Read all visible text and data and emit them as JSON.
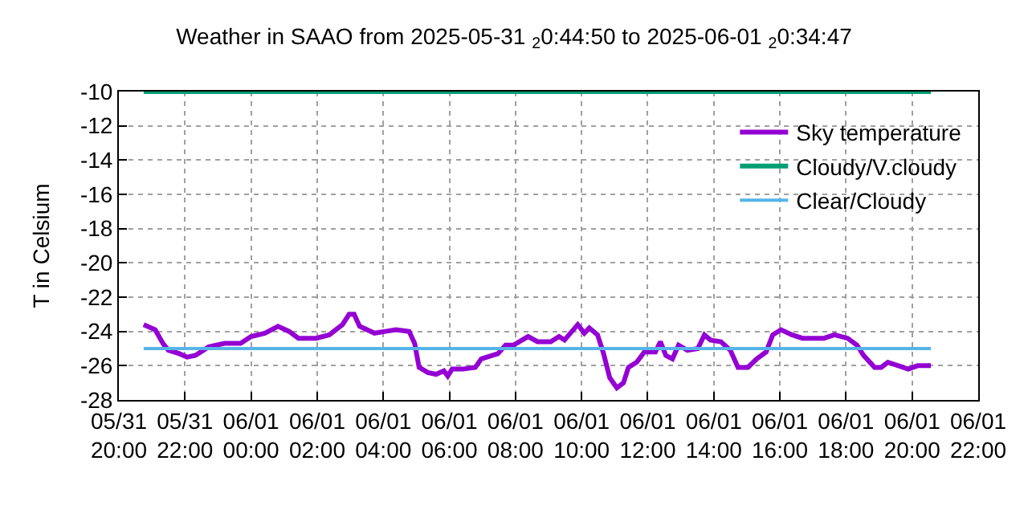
{
  "chart_data": {
    "type": "line",
    "title": "Weather in SAAO from 2025-05-31 $_{2}$0:44:50 to 2025-06-01 $_{2}$0:34:47",
    "ylabel": "T in Celsium",
    "xlim": [
      "2025-05-31T20:00",
      "2025-06-01T22:00"
    ],
    "xticks": [
      {
        "value": "2025-05-31T20:00",
        "label": "05/31\n20:00"
      },
      {
        "value": "2025-05-31T22:00",
        "label": "05/31\n22:00"
      },
      {
        "value": "2025-06-01T00:00",
        "label": "06/01\n00:00"
      },
      {
        "value": "2025-06-01T02:00",
        "label": "06/01\n02:00"
      },
      {
        "value": "2025-06-01T04:00",
        "label": "06/01\n04:00"
      },
      {
        "value": "2025-06-01T06:00",
        "label": "06/01\n06:00"
      },
      {
        "value": "2025-06-01T08:00",
        "label": "06/01\n08:00"
      },
      {
        "value": "2025-06-01T10:00",
        "label": "06/01\n10:00"
      },
      {
        "value": "2025-06-01T12:00",
        "label": "06/01\n12:00"
      },
      {
        "value": "2025-06-01T14:00",
        "label": "06/01\n14:00"
      },
      {
        "value": "2025-06-01T16:00",
        "label": "06/01\n16:00"
      },
      {
        "value": "2025-06-01T18:00",
        "label": "06/01\n18:00"
      },
      {
        "value": "2025-06-01T20:00",
        "label": "06/01\n20:00"
      },
      {
        "value": "2025-06-01T22:00",
        "label": "06/01\n22:00"
      }
    ],
    "ylim": [
      -28,
      -10
    ],
    "yticks": [
      -28,
      -26,
      -24,
      -22,
      -20,
      -18,
      -16,
      -14,
      -12,
      -10
    ],
    "grid": true,
    "legend": "top right",
    "series": [
      {
        "name": "Sky temperature",
        "color": "#9400d3",
        "x": [
          "2025-05-31T20:45",
          "2025-05-31T21:06",
          "2025-05-31T21:20",
          "2025-05-31T21:30",
          "2025-05-31T21:50",
          "2025-05-31T22:04",
          "2025-05-31T22:19",
          "2025-05-31T22:43",
          "2025-05-31T23:12",
          "2025-05-31T23:41",
          "2025-06-01T00:00",
          "2025-06-01T00:25",
          "2025-06-01T00:49",
          "2025-06-01T01:09",
          "2025-06-01T01:26",
          "2025-06-01T01:58",
          "2025-06-01T02:22",
          "2025-06-01T02:46",
          "2025-06-01T02:58",
          "2025-06-01T03:07",
          "2025-06-01T03:17",
          "2025-06-01T03:44",
          "2025-06-01T04:04",
          "2025-06-01T04:23",
          "2025-06-01T04:47",
          "2025-06-01T04:57",
          "2025-06-01T05:05",
          "2025-06-01T05:21",
          "2025-06-01T05:36",
          "2025-06-01T05:50",
          "2025-06-01T05:57",
          "2025-06-01T06:05",
          "2025-06-01T06:24",
          "2025-06-01T06:47",
          "2025-06-01T06:58",
          "2025-06-01T07:28",
          "2025-06-01T07:42",
          "2025-06-01T07:56",
          "2025-06-01T08:23",
          "2025-06-01T08:40",
          "2025-06-01T09:04",
          "2025-06-01T09:19",
          "2025-06-01T09:29",
          "2025-06-01T09:53",
          "2025-06-01T10:05",
          "2025-06-01T10:14",
          "2025-06-01T10:29",
          "2025-06-01T10:40",
          "2025-06-01T10:51",
          "2025-06-01T11:04",
          "2025-06-01T11:16",
          "2025-06-01T11:25",
          "2025-06-01T11:40",
          "2025-06-01T11:54",
          "2025-06-01T12:14",
          "2025-06-01T12:23",
          "2025-06-01T12:33",
          "2025-06-01T12:45",
          "2025-06-01T12:56",
          "2025-06-01T13:12",
          "2025-06-01T13:31",
          "2025-06-01T13:43",
          "2025-06-01T13:54",
          "2025-06-01T14:13",
          "2025-06-01T14:30",
          "2025-06-01T14:44",
          "2025-06-01T15:02",
          "2025-06-01T15:18",
          "2025-06-01T15:35",
          "2025-06-01T15:47",
          "2025-06-01T16:02",
          "2025-06-01T16:22",
          "2025-06-01T16:41",
          "2025-06-01T17:20",
          "2025-06-01T17:39",
          "2025-06-01T18:03",
          "2025-06-01T18:20",
          "2025-06-01T18:32",
          "2025-06-01T18:52",
          "2025-06-01T19:04",
          "2025-06-01T19:16",
          "2025-06-01T19:35",
          "2025-06-01T19:53",
          "2025-06-01T20:10",
          "2025-06-01T20:34"
        ],
        "values": [
          -23.6,
          -23.9,
          -24.7,
          -25.1,
          -25.3,
          -25.5,
          -25.4,
          -24.9,
          -24.7,
          -24.7,
          -24.3,
          -24.1,
          -23.7,
          -24.0,
          -24.4,
          -24.4,
          -24.2,
          -23.6,
          -23.0,
          -23.0,
          -23.7,
          -24.1,
          -24.0,
          -23.9,
          -24.0,
          -24.7,
          -26.1,
          -26.4,
          -26.5,
          -26.3,
          -26.6,
          -26.2,
          -26.2,
          -26.1,
          -25.6,
          -25.3,
          -24.8,
          -24.8,
          -24.3,
          -24.6,
          -24.6,
          -24.3,
          -24.5,
          -23.6,
          -24.1,
          -23.8,
          -24.2,
          -25.3,
          -26.7,
          -27.3,
          -27.0,
          -26.1,
          -25.8,
          -25.2,
          -25.2,
          -24.6,
          -25.4,
          -25.6,
          -24.8,
          -25.1,
          -25.0,
          -24.2,
          -24.5,
          -24.6,
          -25.1,
          -26.1,
          -26.1,
          -25.6,
          -25.2,
          -24.2,
          -23.9,
          -24.2,
          -24.4,
          -24.4,
          -24.2,
          -24.4,
          -24.8,
          -25.4,
          -26.1,
          -26.1,
          -25.8,
          -26.0,
          -26.2,
          -26.0,
          -26.0
        ]
      },
      {
        "name": "Cloudy/V.cloudy",
        "color": "#009e73",
        "x": [
          "2025-05-31T20:45",
          "2025-06-01T20:34"
        ],
        "values": [
          -10,
          -10
        ]
      },
      {
        "name": "Clear/Cloudy",
        "color": "#56b4e9",
        "x": [
          "2025-05-31T20:45",
          "2025-06-01T20:34"
        ],
        "values": [
          -25,
          -25
        ]
      }
    ]
  }
}
